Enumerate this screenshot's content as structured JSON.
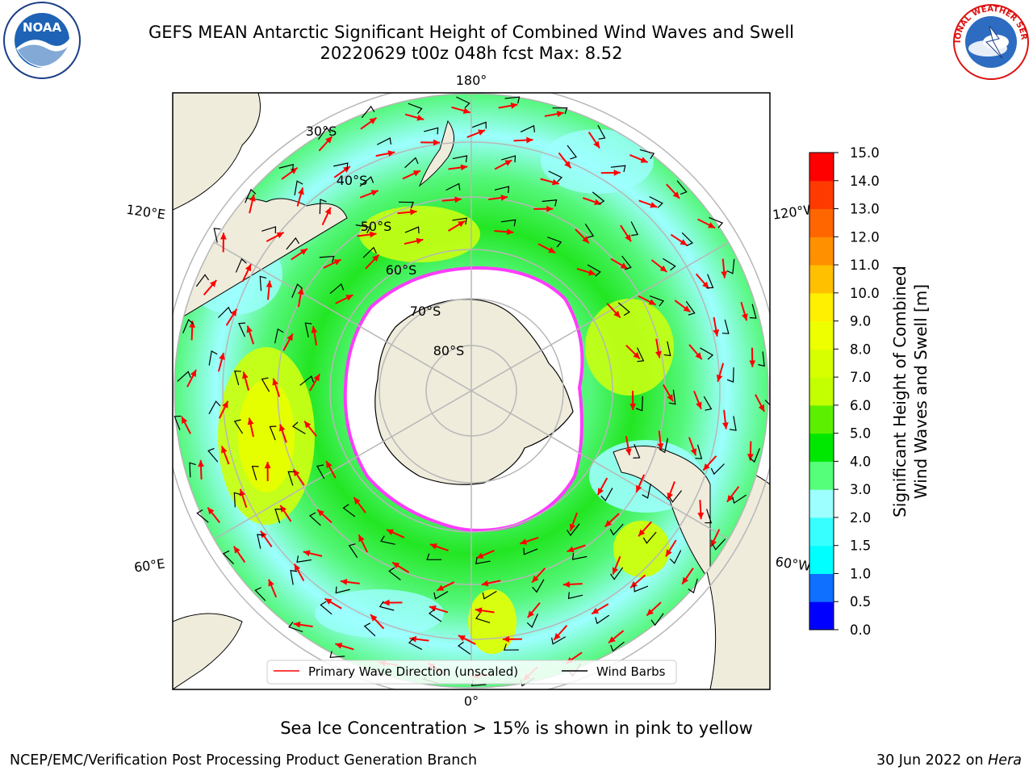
{
  "title": {
    "line1": "GEFS MEAN Antarctic Significant Height of Combined Wind Waves and Swell",
    "line2": "20220629 t00z 048h fcst   Max: 8.52"
  },
  "logos": {
    "left": {
      "icon": "noaa-logo",
      "text": "NOAA"
    },
    "right": {
      "icon": "national-weather-service-logo",
      "text": "NATIONAL WEATHER SERVICE"
    }
  },
  "map": {
    "projection": "south-polar-stereographic",
    "longitude_labels": {
      "top": "180°",
      "bottom": "0°",
      "upper_left": "120°E",
      "upper_right": "120°W",
      "lower_left": "60°E",
      "lower_right": "60°W"
    },
    "latitude_labels": [
      "30°S",
      "40°S",
      "50°S",
      "60°S",
      "70°S",
      "80°S"
    ],
    "colors": {
      "land": "#efecdc",
      "ocean_low": "#a8ffff",
      "ocean_mid": "#55f77b",
      "ocean_high": "#dbff1a",
      "ice": "#ffffff",
      "ice_edge": "#ff3cff",
      "arrow": "#ff0000",
      "barb": "#000000",
      "grid": "#b7b7b7"
    }
  },
  "legend": {
    "items": [
      {
        "label": "Primary Wave Direction (unscaled)",
        "color": "#ff0000"
      },
      {
        "label": "Wind Barbs",
        "color": "#000000"
      }
    ]
  },
  "colorbar": {
    "label_line1": "Significant Height of Combined",
    "label_line2": "Wind Waves and Swell [m]",
    "ticks": [
      "0.0",
      "0.5",
      "1.0",
      "1.5",
      "2.0",
      "3.0",
      "4.0",
      "5.0",
      "6.0",
      "7.0",
      "8.0",
      "9.0",
      "10.0",
      "11.0",
      "12.0",
      "13.0",
      "14.0",
      "15.0"
    ],
    "colors": [
      "#0000ff",
      "#0f6fff",
      "#00ffff",
      "#38ffff",
      "#9dffff",
      "#55ff7a",
      "#00e800",
      "#5cf000",
      "#c3ff00",
      "#d8ff00",
      "#eeff00",
      "#ffef00",
      "#ffc000",
      "#ff9000",
      "#ff6600",
      "#ff3a00",
      "#ff0000"
    ]
  },
  "caption": "Sea Ice Concentration > 15% is shown in pink to yellow",
  "footer": {
    "left": "NCEP/EMC/Verification Post Processing Product Generation Branch",
    "right_date": "30 Jun 2022 on ",
    "right_host": "Hera"
  }
}
